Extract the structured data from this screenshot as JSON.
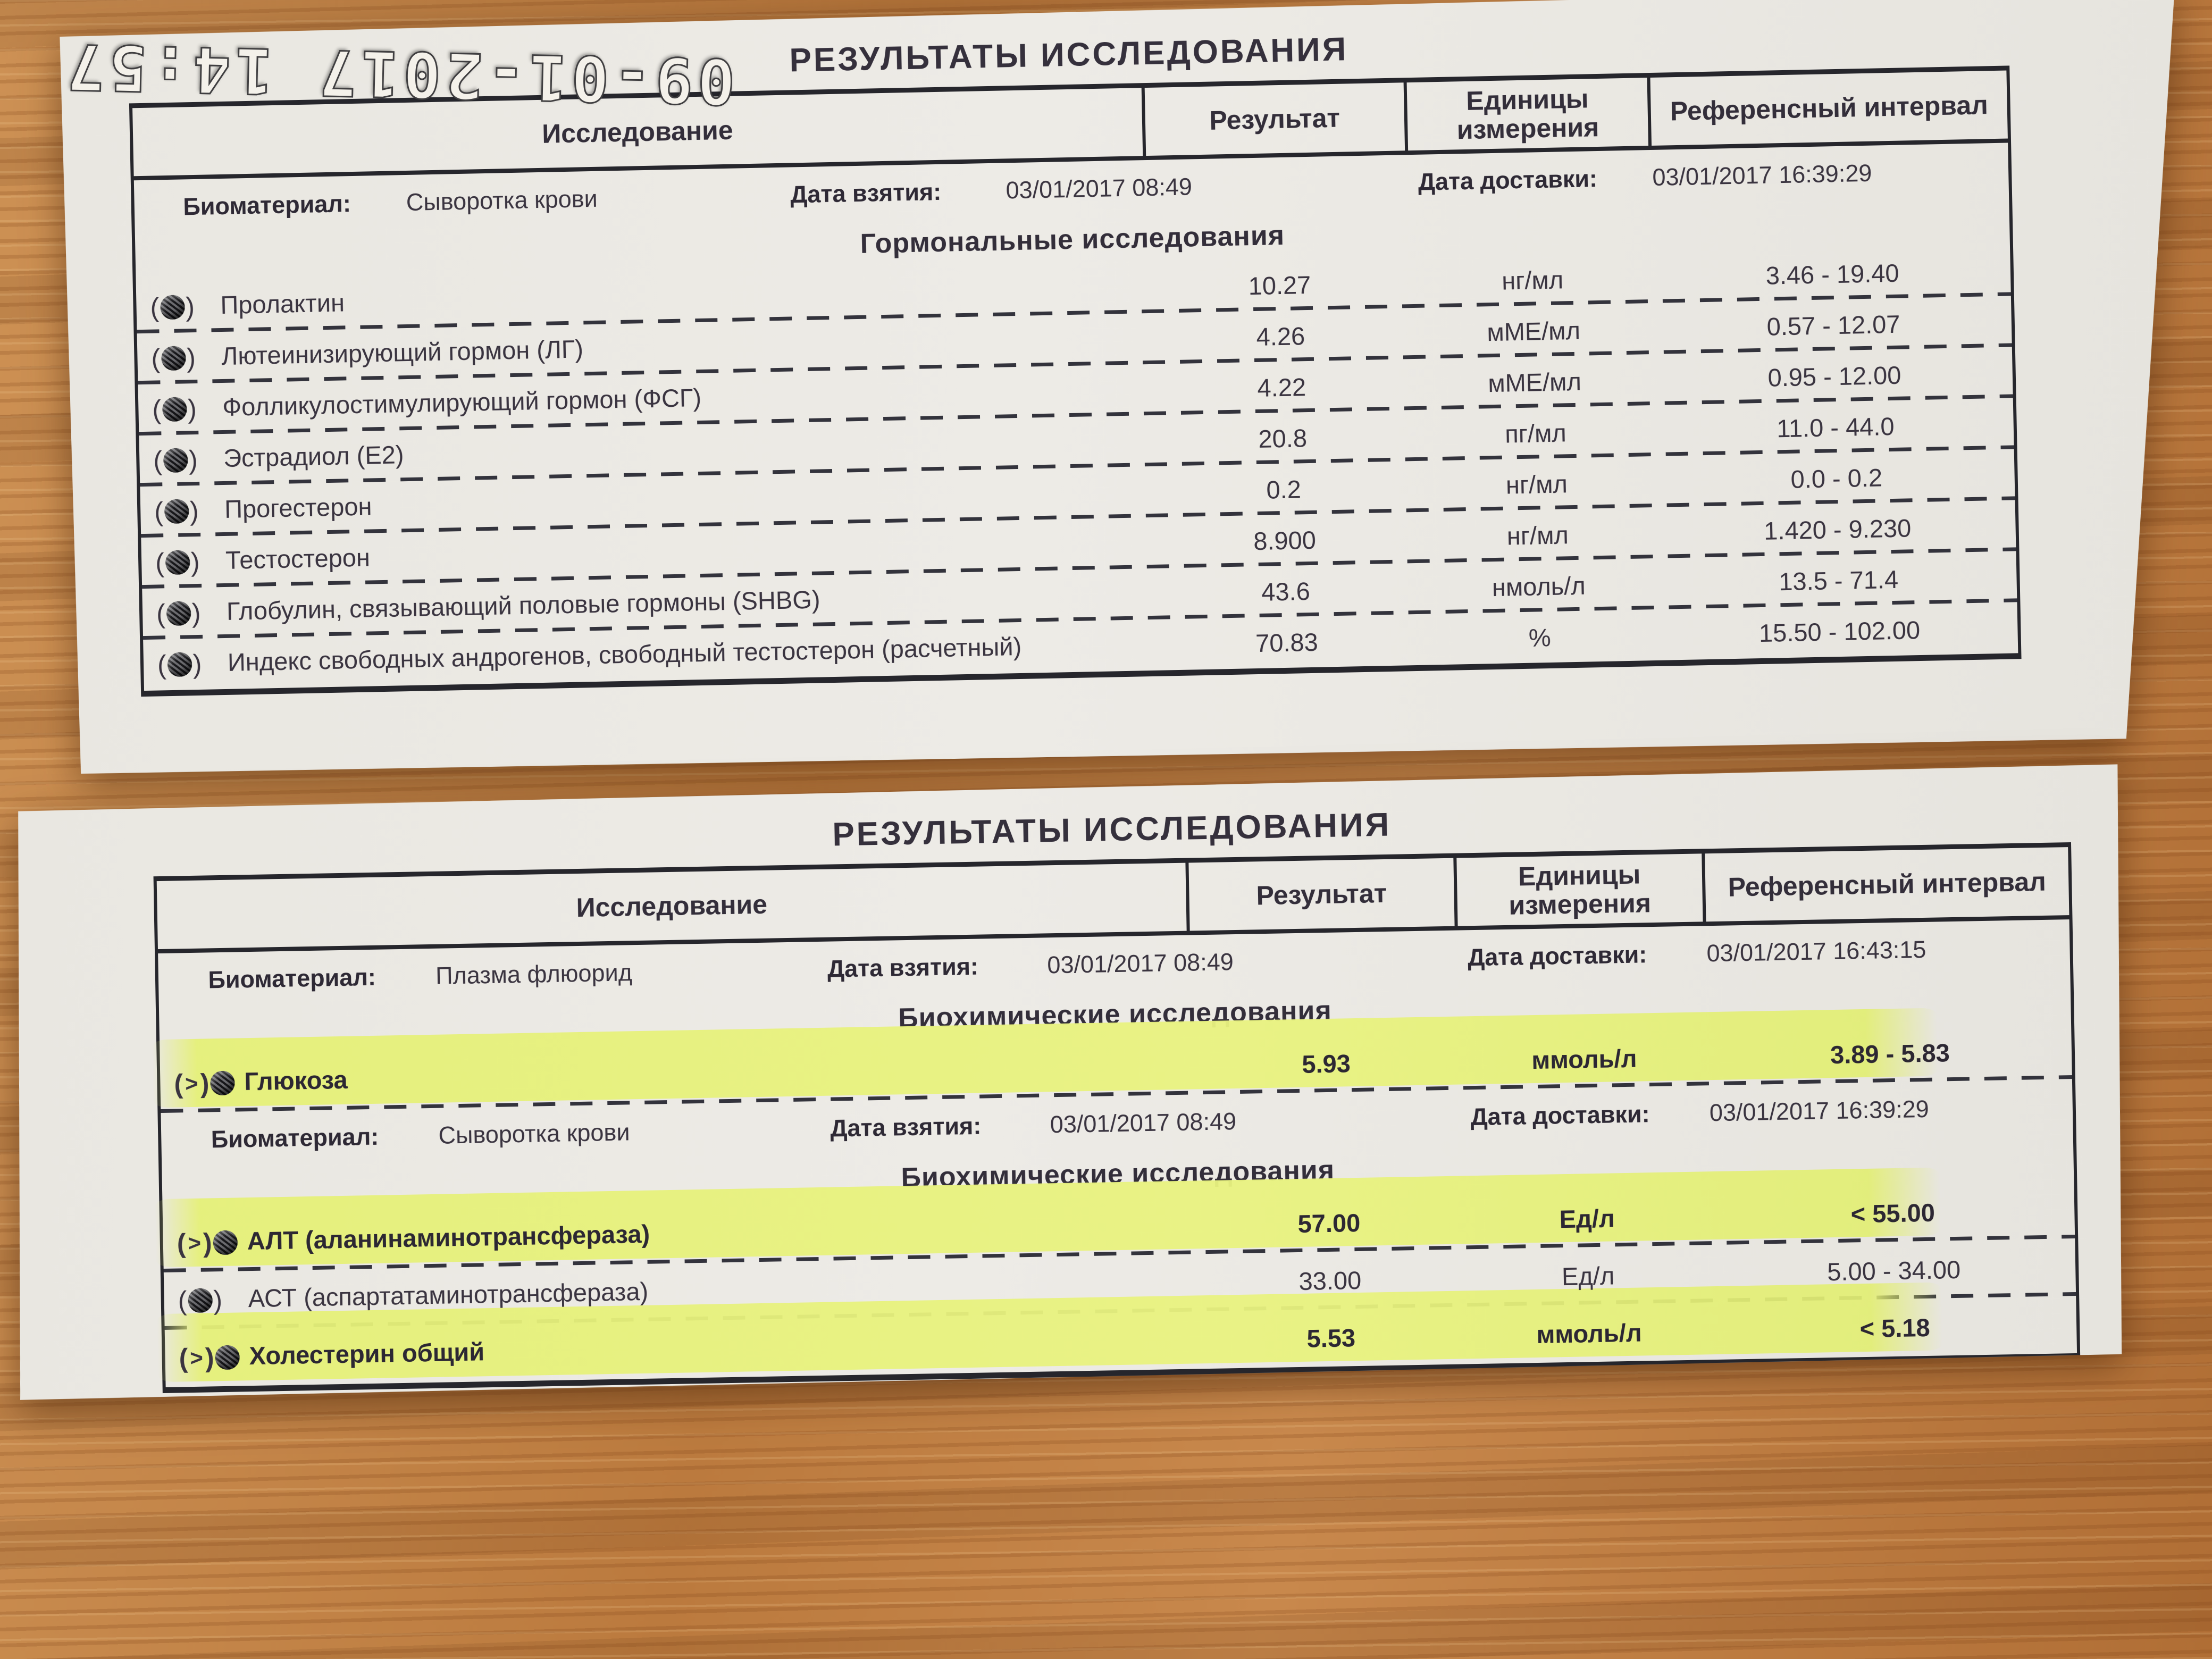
{
  "timestamp": "09-01-2017 14:57",
  "colors": {
    "wood": "#bb7a3e",
    "paper": "#eae8e2",
    "ink": "#3a3440",
    "highlight": "#e5f078"
  },
  "doc1": {
    "title": "РЕЗУЛЬТАТЫ ИССЛЕДОВАНИЯ",
    "columns": [
      "Исследование",
      "Результат",
      "Единицы измерения",
      "Референсный интервал"
    ],
    "rows": [
      {
        "type": "meta",
        "biomaterial_label": "Биоматериал:",
        "biomaterial": "Сыворотка крови",
        "taken_label": "Дата взятия:",
        "taken": "03/01/2017 08:49",
        "delivery_label": "Дата доставки:",
        "delivery": "03/01/2017 16:39:29"
      },
      {
        "type": "section",
        "label": "Гормональные исследования"
      },
      {
        "type": "test",
        "out_of_range": false,
        "highlighted": false,
        "name": "Пролактин",
        "result": "10.27",
        "unit": "нг/мл",
        "ref": "3.46 - 19.40"
      },
      {
        "type": "test",
        "out_of_range": false,
        "highlighted": false,
        "name": "Лютеинизирующий гормон (ЛГ)",
        "result": "4.26",
        "unit": "мМЕ/мл",
        "ref": "0.57 - 12.07"
      },
      {
        "type": "test",
        "out_of_range": false,
        "highlighted": false,
        "name": "Фолликулостимулирующий гормон (ФСГ)",
        "result": "4.22",
        "unit": "мМЕ/мл",
        "ref": "0.95 - 12.00"
      },
      {
        "type": "test",
        "out_of_range": false,
        "highlighted": false,
        "name": "Эстрадиол (Е2)",
        "result": "20.8",
        "unit": "пг/мл",
        "ref": "11.0 - 44.0"
      },
      {
        "type": "test",
        "out_of_range": false,
        "highlighted": false,
        "name": "Прогестерон",
        "result": "0.2",
        "unit": "нг/мл",
        "ref": "0.0 - 0.2"
      },
      {
        "type": "test",
        "out_of_range": false,
        "highlighted": false,
        "name": "Тестостерон",
        "result": "8.900",
        "unit": "нг/мл",
        "ref": "1.420 - 9.230"
      },
      {
        "type": "test",
        "out_of_range": false,
        "highlighted": false,
        "name": "Глобулин, связывающий половые гормоны (SHBG)",
        "result": "43.6",
        "unit": "нмоль/л",
        "ref": "13.5 - 71.4"
      },
      {
        "type": "test",
        "out_of_range": false,
        "highlighted": false,
        "name": "Индекс свободных андрогенов, свободный тестостерон (расчетный)",
        "result": "70.83",
        "unit": "%",
        "ref": "15.50 - 102.00"
      }
    ]
  },
  "doc2": {
    "title": "РЕЗУЛЬТАТЫ ИССЛЕДОВАНИЯ",
    "columns": [
      "Исследование",
      "Результат",
      "Единицы измерения",
      "Референсный интервал"
    ],
    "rows": [
      {
        "type": "meta",
        "biomaterial_label": "Биоматериал:",
        "biomaterial": "Плазма флюорид",
        "taken_label": "Дата взятия:",
        "taken": "03/01/2017 08:49",
        "delivery_label": "Дата доставки:",
        "delivery": "03/01/2017 16:43:15"
      },
      {
        "type": "section",
        "label": "Биохимические исследования"
      },
      {
        "type": "test",
        "out_of_range": true,
        "highlighted": true,
        "name": "Глюкоза",
        "result": "5.93",
        "unit": "ммоль/л",
        "ref": "3.89 - 5.83"
      },
      {
        "type": "meta",
        "biomaterial_label": "Биоматериал:",
        "biomaterial": "Сыворотка крови",
        "taken_label": "Дата взятия:",
        "taken": "03/01/2017 08:49",
        "delivery_label": "Дата доставки:",
        "delivery": "03/01/2017 16:39:29"
      },
      {
        "type": "section",
        "label": "Биохимические исследования"
      },
      {
        "type": "test",
        "out_of_range": true,
        "highlighted": true,
        "name": "АЛТ (аланинаминотрансфераза)",
        "result": "57.00",
        "unit": "Ед/л",
        "ref": "< 55.00"
      },
      {
        "type": "test",
        "out_of_range": false,
        "highlighted": false,
        "name": "АСТ (аспартатаминотрансфераза)",
        "result": "33.00",
        "unit": "Ед/л",
        "ref": "5.00 - 34.00"
      },
      {
        "type": "test",
        "out_of_range": true,
        "highlighted": true,
        "name": "Холестерин общий",
        "result": "5.53",
        "unit": "ммоль/л",
        "ref": "< 5.18"
      }
    ]
  }
}
